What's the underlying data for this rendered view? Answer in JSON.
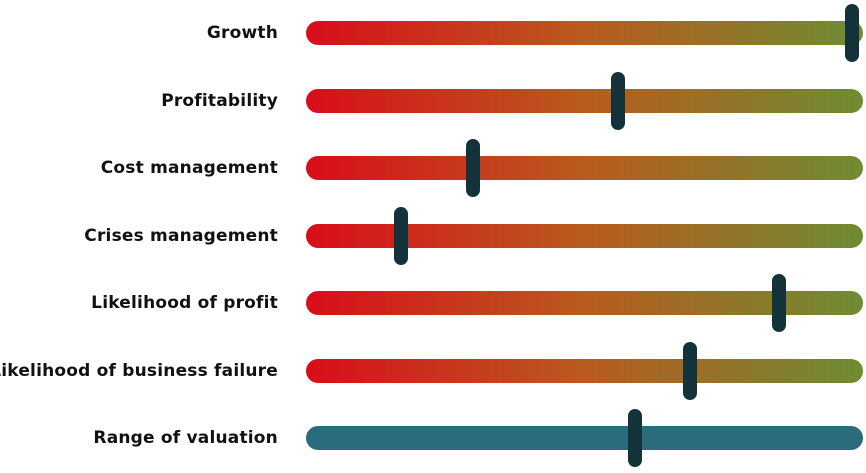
{
  "chart_data": {
    "type": "slider-scale",
    "colors": {
      "scale_start": "#d90d1b",
      "scale_mid": "#b95b1e",
      "scale_end": "#6e8c33",
      "valuation_track": "#2c6b7c",
      "marker": "#14323a"
    },
    "xlim": [
      0,
      100
    ],
    "rows": [
      {
        "label": "Growth",
        "value": 98,
        "style": "gradient"
      },
      {
        "label": "Profitability",
        "value": 56,
        "style": "gradient"
      },
      {
        "label": "Cost management",
        "value": 30,
        "style": "gradient"
      },
      {
        "label": "Crises management",
        "value": 17,
        "style": "gradient"
      },
      {
        "label": "Likelihood of profit",
        "value": 85,
        "style": "gradient"
      },
      {
        "label": "Likelihood of business failure",
        "value": 69,
        "style": "gradient"
      },
      {
        "label": "Range of valuation",
        "value": 59,
        "style": "solid"
      }
    ]
  }
}
